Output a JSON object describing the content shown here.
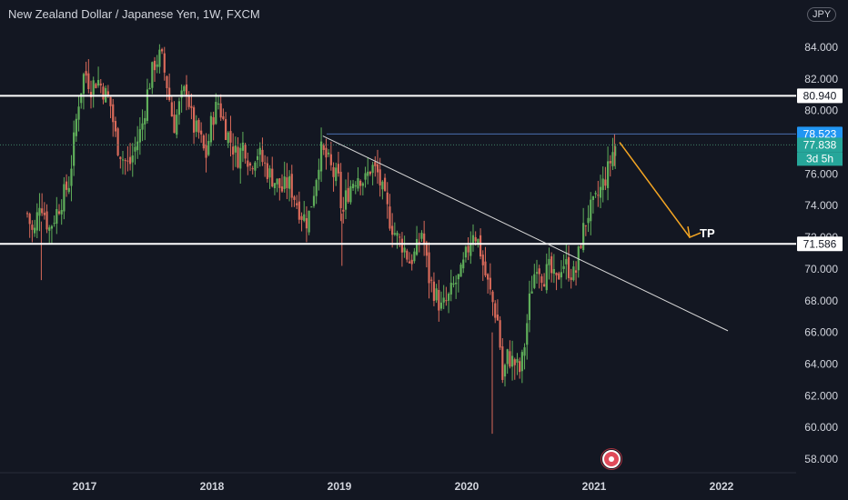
{
  "header": {
    "title": "New Zealand Dollar / Japanese Yen, 1W, FXCM",
    "currency": "JPY"
  },
  "colors": {
    "background": "#131722",
    "up": "#5fae5a",
    "down": "#d96a5a",
    "grid_text": "#d1d4dc",
    "current_price_bg": "#26a69a",
    "level_line": "#ffffff",
    "blue_price_bg": "#2196f3",
    "arrow": "#f5a623"
  },
  "chart_data": {
    "type": "candlestick",
    "title": "New Zealand Dollar / Japanese Yen, 1W, FXCM",
    "x_ticks": [
      "2017",
      "2018",
      "2019",
      "2020",
      "2021",
      "2022"
    ],
    "y_ticks": [
      "84.000",
      "82.000",
      "80.000",
      "78.000",
      "76.000",
      "74.000",
      "72.000",
      "70.000",
      "68.000",
      "66.000",
      "64.000",
      "62.000",
      "60.000",
      "58.000"
    ],
    "ylim": [
      57,
      86
    ],
    "price_labels": {
      "resistance": "80.940",
      "support": "71.586",
      "high": "78.523",
      "current": "77.838",
      "countdown": "3d 5h"
    },
    "levels": [
      80.94,
      71.586
    ],
    "annotation_tp": "TP",
    "trendline": {
      "from": [
        2018.87,
        78.4
      ],
      "to": [
        2022.05,
        66.1
      ]
    },
    "arrow": {
      "from": [
        2021.2,
        78.0
      ],
      "to": [
        2021.75,
        72.0
      ]
    },
    "path": [
      [
        2016.55,
        73.5
      ],
      [
        2016.6,
        72.0
      ],
      [
        2016.65,
        74.5
      ],
      [
        2016.72,
        72.5
      ],
      [
        2016.8,
        74.0
      ],
      [
        2016.88,
        75.5
      ],
      [
        2016.95,
        80.5
      ],
      [
        2017.0,
        82.5
      ],
      [
        2017.05,
        81.5
      ],
      [
        2017.1,
        82.0
      ],
      [
        2017.2,
        80.5
      ],
      [
        2017.25,
        78.0
      ],
      [
        2017.3,
        77.0
      ],
      [
        2017.35,
        76.5
      ],
      [
        2017.45,
        79.0
      ],
      [
        2017.5,
        81.5
      ],
      [
        2017.55,
        83.0
      ],
      [
        2017.6,
        83.5
      ],
      [
        2017.65,
        81.5
      ],
      [
        2017.7,
        79.0
      ],
      [
        2017.75,
        80.5
      ],
      [
        2017.8,
        81.5
      ],
      [
        2017.85,
        79.0
      ],
      [
        2017.9,
        78.5
      ],
      [
        2017.95,
        77.0
      ],
      [
        2018.0,
        79.5
      ],
      [
        2018.05,
        80.5
      ],
      [
        2018.1,
        79.0
      ],
      [
        2018.15,
        78.0
      ],
      [
        2018.2,
        77.0
      ],
      [
        2018.25,
        78.0
      ],
      [
        2018.3,
        76.5
      ],
      [
        2018.35,
        77.5
      ],
      [
        2018.45,
        76.0
      ],
      [
        2018.55,
        75.0
      ],
      [
        2018.6,
        75.5
      ],
      [
        2018.65,
        74.5
      ],
      [
        2018.7,
        73.5
      ],
      [
        2018.75,
        73.0
      ],
      [
        2018.8,
        75.0
      ],
      [
        2018.85,
        77.5
      ],
      [
        2018.9,
        77.0
      ],
      [
        2018.95,
        76.0
      ],
      [
        2019.0,
        75.5
      ],
      [
        2019.02,
        73.0
      ],
      [
        2019.05,
        74.5
      ],
      [
        2019.1,
        75.5
      ],
      [
        2019.15,
        76.0
      ],
      [
        2019.2,
        75.5
      ],
      [
        2019.25,
        76.5
      ],
      [
        2019.3,
        76.0
      ],
      [
        2019.35,
        74.5
      ],
      [
        2019.4,
        73.0
      ],
      [
        2019.45,
        72.0
      ],
      [
        2019.5,
        71.5
      ],
      [
        2019.55,
        70.5
      ],
      [
        2019.6,
        71.0
      ],
      [
        2019.65,
        72.5
      ],
      [
        2019.7,
        69.5
      ],
      [
        2019.75,
        68.5
      ],
      [
        2019.8,
        67.5
      ],
      [
        2019.85,
        68.0
      ],
      [
        2019.9,
        69.0
      ],
      [
        2019.95,
        69.5
      ],
      [
        2020.0,
        71.0
      ],
      [
        2020.05,
        72.5
      ],
      [
        2020.1,
        71.5
      ],
      [
        2020.12,
        70.5
      ],
      [
        2020.15,
        69.5
      ],
      [
        2020.2,
        68.0
      ],
      [
        2020.25,
        66.5
      ],
      [
        2020.28,
        63.0
      ],
      [
        2020.32,
        64.5
      ],
      [
        2020.38,
        64.0
      ],
      [
        2020.42,
        63.5
      ],
      [
        2020.45,
        65.0
      ],
      [
        2020.5,
        68.5
      ],
      [
        2020.55,
        70.5
      ],
      [
        2020.6,
        69.5
      ],
      [
        2020.65,
        70.0
      ],
      [
        2020.7,
        69.0
      ],
      [
        2020.75,
        70.5
      ],
      [
        2020.8,
        70.0
      ],
      [
        2020.85,
        69.5
      ],
      [
        2020.9,
        72.0
      ],
      [
        2020.95,
        73.5
      ],
      [
        2021.0,
        74.0
      ],
      [
        2021.05,
        75.0
      ],
      [
        2021.1,
        76.0
      ],
      [
        2021.15,
        77.5
      ],
      [
        2021.17,
        77.84
      ]
    ]
  }
}
